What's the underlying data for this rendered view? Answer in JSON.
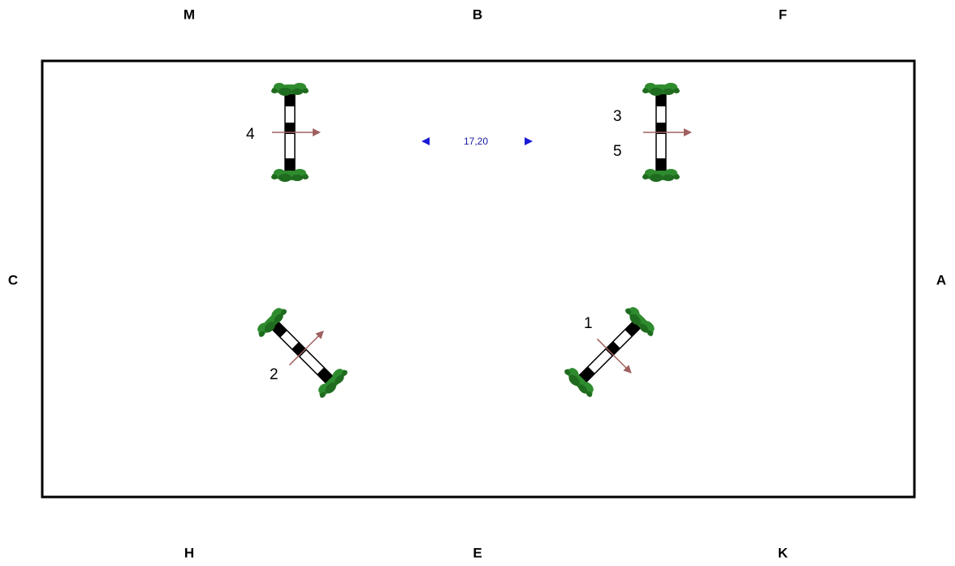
{
  "arena": {
    "markers": {
      "top": [
        "M",
        "B",
        "F"
      ],
      "bottom": [
        "H",
        "E",
        "K"
      ],
      "left": "C",
      "right": "A"
    }
  },
  "jumps": [
    {
      "numbers": [
        "1"
      ]
    },
    {
      "numbers": [
        "2"
      ]
    },
    {
      "numbers": [
        "3",
        "5"
      ]
    },
    {
      "numbers": [
        "4"
      ]
    }
  ],
  "distance": {
    "label": "17,20"
  },
  "colors": {
    "border": "#000000",
    "pole_dark": "#000000",
    "pole_light": "#ffffff",
    "foliage": "#2e8b2e",
    "foliage_dark": "#1f6b1f",
    "direction_arrow": "#a06060",
    "distance_arrow": "#1a1ad6",
    "distance_text": "#1a1aa6"
  }
}
